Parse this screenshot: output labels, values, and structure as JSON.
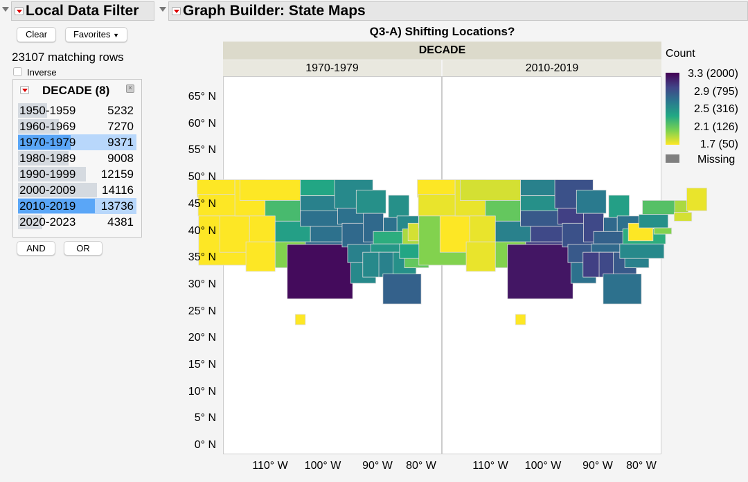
{
  "filter": {
    "title": "Local Data Filter",
    "clear": "Clear",
    "favorites": "Favorites",
    "matching": "23107 matching rows",
    "inverse": "Inverse",
    "column_title": "DECADE (8)",
    "levels": [
      {
        "label": "1950-1959",
        "count": "5232",
        "n": 5232,
        "selected": false
      },
      {
        "label": "1960-1969",
        "count": "7270",
        "n": 7270,
        "selected": false
      },
      {
        "label": "1970-1979",
        "count": "9371",
        "n": 9371,
        "selected": true
      },
      {
        "label": "1980-1989",
        "count": "9008",
        "n": 9008,
        "selected": false
      },
      {
        "label": "1990-1999",
        "count": "12159",
        "n": 12159,
        "selected": false
      },
      {
        "label": "2000-2009",
        "count": "14116",
        "n": 14116,
        "selected": false
      },
      {
        "label": "2010-2019",
        "count": "13736",
        "n": 13736,
        "selected": true
      },
      {
        "label": "2020-2023",
        "count": "4381",
        "n": 4381,
        "selected": false
      }
    ],
    "and": "AND",
    "or": "OR"
  },
  "graph": {
    "title": "Graph Builder: State Maps",
    "chart_title": "Q3-A) Shifting Locations?",
    "group_title": "DECADE",
    "panels": [
      "1970-1979",
      "2010-2019"
    ]
  },
  "chart_data": {
    "type": "heatmap",
    "yticks": [
      "65° N",
      "60° N",
      "55° N",
      "50° N",
      "45° N",
      "40° N",
      "35° N",
      "30° N",
      "25° N",
      "20° N",
      "15° N",
      "10° N",
      "5° N",
      "0° N"
    ],
    "xticks": [
      "110° W",
      "100° W",
      "90° W",
      "80° W"
    ],
    "legend": {
      "title": "Count",
      "labels": [
        "3.3 (2000)",
        "2.9 (795)",
        "2.5 (316)",
        "2.1 (126)",
        "1.7 (50)"
      ],
      "missing": "Missing",
      "missing_color": "#7f7f7f",
      "range": [
        1.7,
        3.3
      ],
      "colors": [
        "#fde725",
        "#7ad151",
        "#22a884",
        "#2a788e",
        "#414487",
        "#440154"
      ]
    },
    "state_values": {
      "WA": [
        1.7,
        1.7
      ],
      "OR": [
        1.7,
        1.75
      ],
      "CA": [
        1.7,
        2.0
      ],
      "NV": [
        1.7,
        1.7
      ],
      "ID": [
        1.7,
        1.75
      ],
      "MT": [
        1.7,
        1.8
      ],
      "WY": [
        2.2,
        2.1
      ],
      "UT": [
        1.7,
        1.75
      ],
      "CO": [
        2.4,
        2.6
      ],
      "AZ": [
        1.7,
        1.75
      ],
      "NM": [
        2.0,
        2.0
      ],
      "ND": [
        2.35,
        2.6
      ],
      "SD": [
        2.6,
        2.5
      ],
      "NE": [
        2.7,
        2.85
      ],
      "KS": [
        2.7,
        2.95
      ],
      "OK": [
        2.75,
        3.0
      ],
      "TX": [
        3.25,
        3.2
      ],
      "MN": [
        2.55,
        2.9
      ],
      "IA": [
        2.7,
        3.0
      ],
      "MO": [
        2.75,
        2.9
      ],
      "AR": [
        2.6,
        2.85
      ],
      "LA": [
        2.55,
        2.7
      ],
      "WI": [
        2.5,
        2.65
      ],
      "IL": [
        2.75,
        2.95
      ],
      "MI": [
        2.5,
        2.4
      ],
      "IN": [
        2.7,
        2.75
      ],
      "OH": [
        2.55,
        2.7
      ],
      "KY": [
        2.3,
        2.8
      ],
      "TN": [
        2.45,
        2.75
      ],
      "MS": [
        2.55,
        3.0
      ],
      "AL": [
        2.6,
        2.95
      ],
      "GA": [
        2.5,
        2.85
      ],
      "FL": [
        2.8,
        2.7
      ],
      "SC": [
        2.1,
        2.6
      ],
      "NC": [
        2.35,
        2.55
      ],
      "VA": [
        1.9,
        2.3
      ],
      "WV": [
        1.8,
        1.7
      ],
      "PA": [
        2.25,
        2.5
      ],
      "NY": [
        1.95,
        2.15
      ],
      "VT": [
        1.8,
        1.9
      ],
      "ME": [
        1.75,
        1.75
      ],
      "MA": [
        1.8,
        1.8
      ],
      "NJ": [
        1.85,
        2.0
      ],
      "HI": [
        1.7,
        1.7
      ]
    }
  }
}
